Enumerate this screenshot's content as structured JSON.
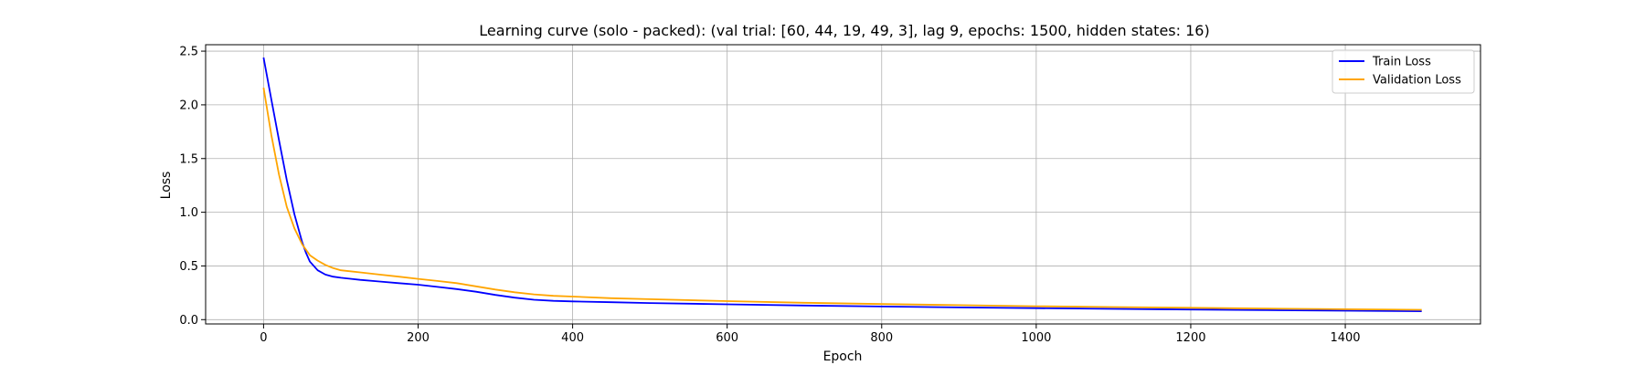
{
  "chart_data": {
    "type": "line",
    "title": "Learning curve (solo - packed): (val trial: [60, 44, 19, 49, 3], lag 9, epochs: 1500, hidden states: 16)",
    "xlabel": "Epoch",
    "ylabel": "Loss",
    "xlim": [
      -75,
      1575
    ],
    "ylim": [
      -0.04,
      2.56
    ],
    "xticks": [
      0,
      200,
      400,
      600,
      800,
      1000,
      1200,
      1400
    ],
    "yticks": [
      0.0,
      0.5,
      1.0,
      1.5,
      2.0,
      2.5
    ],
    "xtick_labels": [
      "0",
      "200",
      "400",
      "600",
      "800",
      "1000",
      "1200",
      "1400"
    ],
    "ytick_labels": [
      "0.0",
      "0.5",
      "1.0",
      "1.5",
      "2.0",
      "2.5"
    ],
    "grid": true,
    "legend_position": "top-right",
    "series": [
      {
        "name": "Train Loss",
        "color": "#0000ff",
        "x": [
          0,
          10,
          20,
          30,
          40,
          50,
          55,
          60,
          70,
          80,
          90,
          100,
          125,
          150,
          175,
          200,
          225,
          250,
          275,
          300,
          325,
          350,
          375,
          400,
          450,
          500,
          600,
          700,
          800,
          900,
          1000,
          1100,
          1200,
          1300,
          1400,
          1499
        ],
        "y": [
          2.44,
          2.05,
          1.67,
          1.3,
          0.98,
          0.72,
          0.62,
          0.54,
          0.46,
          0.42,
          0.4,
          0.39,
          0.37,
          0.355,
          0.34,
          0.325,
          0.305,
          0.285,
          0.26,
          0.23,
          0.205,
          0.185,
          0.175,
          0.17,
          0.162,
          0.155,
          0.143,
          0.132,
          0.122,
          0.114,
          0.107,
          0.1,
          0.094,
          0.088,
          0.083,
          0.078
        ]
      },
      {
        "name": "Validation Loss",
        "color": "#ffa500",
        "x": [
          0,
          10,
          20,
          30,
          40,
          50,
          55,
          60,
          70,
          80,
          90,
          100,
          125,
          150,
          175,
          200,
          225,
          250,
          275,
          300,
          325,
          350,
          375,
          400,
          450,
          500,
          600,
          700,
          800,
          900,
          1000,
          1100,
          1200,
          1300,
          1400,
          1499
        ],
        "y": [
          2.16,
          1.72,
          1.35,
          1.05,
          0.85,
          0.7,
          0.65,
          0.6,
          0.55,
          0.51,
          0.48,
          0.46,
          0.44,
          0.42,
          0.4,
          0.38,
          0.36,
          0.34,
          0.31,
          0.28,
          0.255,
          0.235,
          0.222,
          0.215,
          0.2,
          0.19,
          0.172,
          0.157,
          0.145,
          0.135,
          0.125,
          0.117,
          0.11,
          0.103,
          0.097,
          0.092
        ]
      }
    ]
  }
}
